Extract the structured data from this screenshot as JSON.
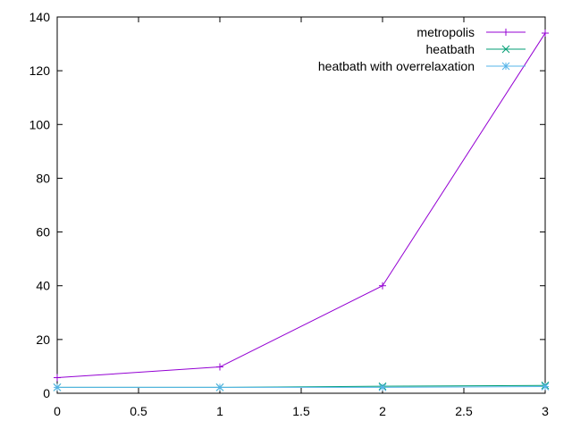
{
  "chart_data": {
    "type": "line",
    "title": "",
    "xlabel": "",
    "ylabel": "",
    "xlim": [
      0,
      3
    ],
    "ylim": [
      0,
      140
    ],
    "xticks": [
      0,
      0.5,
      1,
      1.5,
      2,
      2.5,
      3
    ],
    "xtick_labels": [
      "0",
      "0.5",
      "1",
      "1.5",
      "2",
      "2.5",
      "3"
    ],
    "yticks": [
      0,
      20,
      40,
      60,
      80,
      100,
      120,
      140
    ],
    "ytick_labels": [
      "0",
      "20",
      "40",
      "60",
      "80",
      "100",
      "120",
      "140"
    ],
    "grid": false,
    "legend_position": "top-right",
    "series": [
      {
        "name": "metropolis",
        "color": "#9400d3",
        "marker": "plus",
        "x": [
          0,
          1,
          2,
          3
        ],
        "y": [
          5.8,
          9.8,
          40,
          134
        ]
      },
      {
        "name": "heatbath",
        "color": "#009e73",
        "marker": "cross",
        "x": [
          0,
          1,
          2,
          3
        ],
        "y": [
          2.2,
          2.2,
          2.6,
          2.9
        ]
      },
      {
        "name": "heatbath with overrelaxation",
        "color": "#56b4e9",
        "marker": "star",
        "x": [
          0,
          1,
          2,
          3
        ],
        "y": [
          2.2,
          2.2,
          2.2,
          2.5
        ]
      }
    ]
  }
}
